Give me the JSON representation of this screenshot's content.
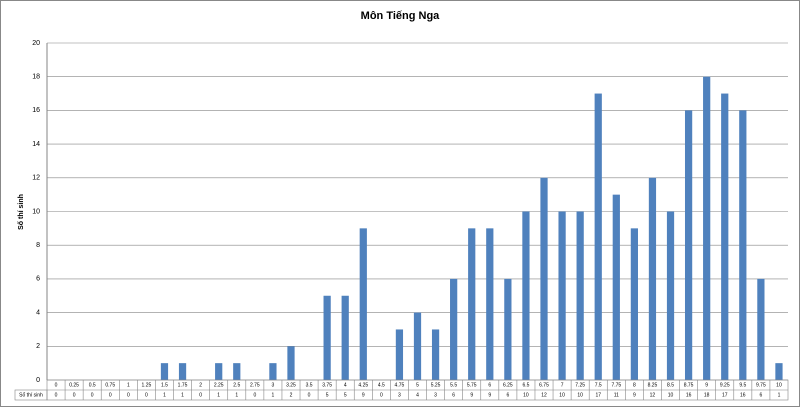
{
  "chart_data": {
    "type": "bar",
    "title": "Môn Tiếng Nga",
    "y_label": "Số thí sinh",
    "series": [
      {
        "name": "Số thí sinh",
        "color": "#4f81bd",
        "values": [
          0,
          0,
          0,
          0,
          0,
          0,
          1,
          1,
          0,
          1,
          1,
          0,
          1,
          2,
          0,
          5,
          5,
          9,
          0,
          3,
          4,
          3,
          6,
          9,
          9,
          6,
          10,
          12,
          10,
          10,
          17,
          11,
          9,
          12,
          10,
          16,
          18,
          17,
          16,
          6,
          1
        ]
      }
    ],
    "categories": [
      "0",
      "0.25",
      "0.5",
      "0.75",
      "1",
      "1.25",
      "1.5",
      "1.75",
      "2",
      "2.25",
      "2.5",
      "2.75",
      "3",
      "3.25",
      "3.5",
      "3.75",
      "4",
      "4.25",
      "4.5",
      "4.75",
      "5",
      "5.25",
      "5.5",
      "5.75",
      "6",
      "6.25",
      "6.5",
      "6.75",
      "7",
      "7.25",
      "7.5",
      "7.75",
      "8",
      "8.25",
      "8.5",
      "8.75",
      "9",
      "9.25",
      "9.5",
      "9.75",
      "10"
    ],
    "ylim": [
      0,
      20
    ],
    "yticks": [
      0,
      2,
      4,
      6,
      8,
      10,
      12,
      14,
      16,
      18,
      20
    ],
    "grid": true,
    "data_table": true
  }
}
